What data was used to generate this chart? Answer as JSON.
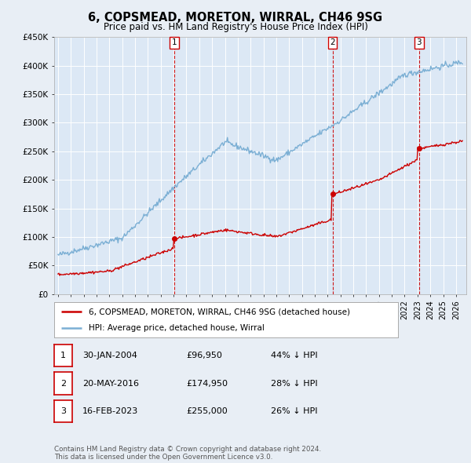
{
  "title": "6, COPSMEAD, MORETON, WIRRAL, CH46 9SG",
  "subtitle": "Price paid vs. HM Land Registry's House Price Index (HPI)",
  "ylim": [
    0,
    450000
  ],
  "yticks": [
    0,
    50000,
    100000,
    150000,
    200000,
    250000,
    300000,
    350000,
    400000,
    450000
  ],
  "ytick_labels": [
    "£0",
    "£50K",
    "£100K",
    "£150K",
    "£200K",
    "£250K",
    "£300K",
    "£350K",
    "£400K",
    "£450K"
  ],
  "hpi_color": "#7bafd4",
  "price_color": "#cc0000",
  "vline_color": "#cc0000",
  "background_color": "#e8eef5",
  "plot_bg_color": "#dce8f5",
  "grid_color": "#ffffff",
  "sale1": {
    "date": "30-JAN-2004",
    "price": 96950,
    "label": "1",
    "year": 2004.08
  },
  "sale2": {
    "date": "20-MAY-2016",
    "price": 174950,
    "label": "2",
    "year": 2016.38
  },
  "sale3": {
    "date": "16-FEB-2023",
    "price": 255000,
    "label": "3",
    "year": 2023.12
  },
  "legend_entry1": "6, COPSMEAD, MORETON, WIRRAL, CH46 9SG (detached house)",
  "legend_entry2": "HPI: Average price, detached house, Wirral",
  "footnote": "Contains HM Land Registry data © Crown copyright and database right 2024.\nThis data is licensed under the Open Government Licence v3.0.",
  "table_rows": [
    [
      "1",
      "30-JAN-2004",
      "£96,950",
      "44% ↓ HPI"
    ],
    [
      "2",
      "20-MAY-2016",
      "£174,950",
      "28% ↓ HPI"
    ],
    [
      "3",
      "16-FEB-2023",
      "£255,000",
      "26% ↓ HPI"
    ]
  ]
}
